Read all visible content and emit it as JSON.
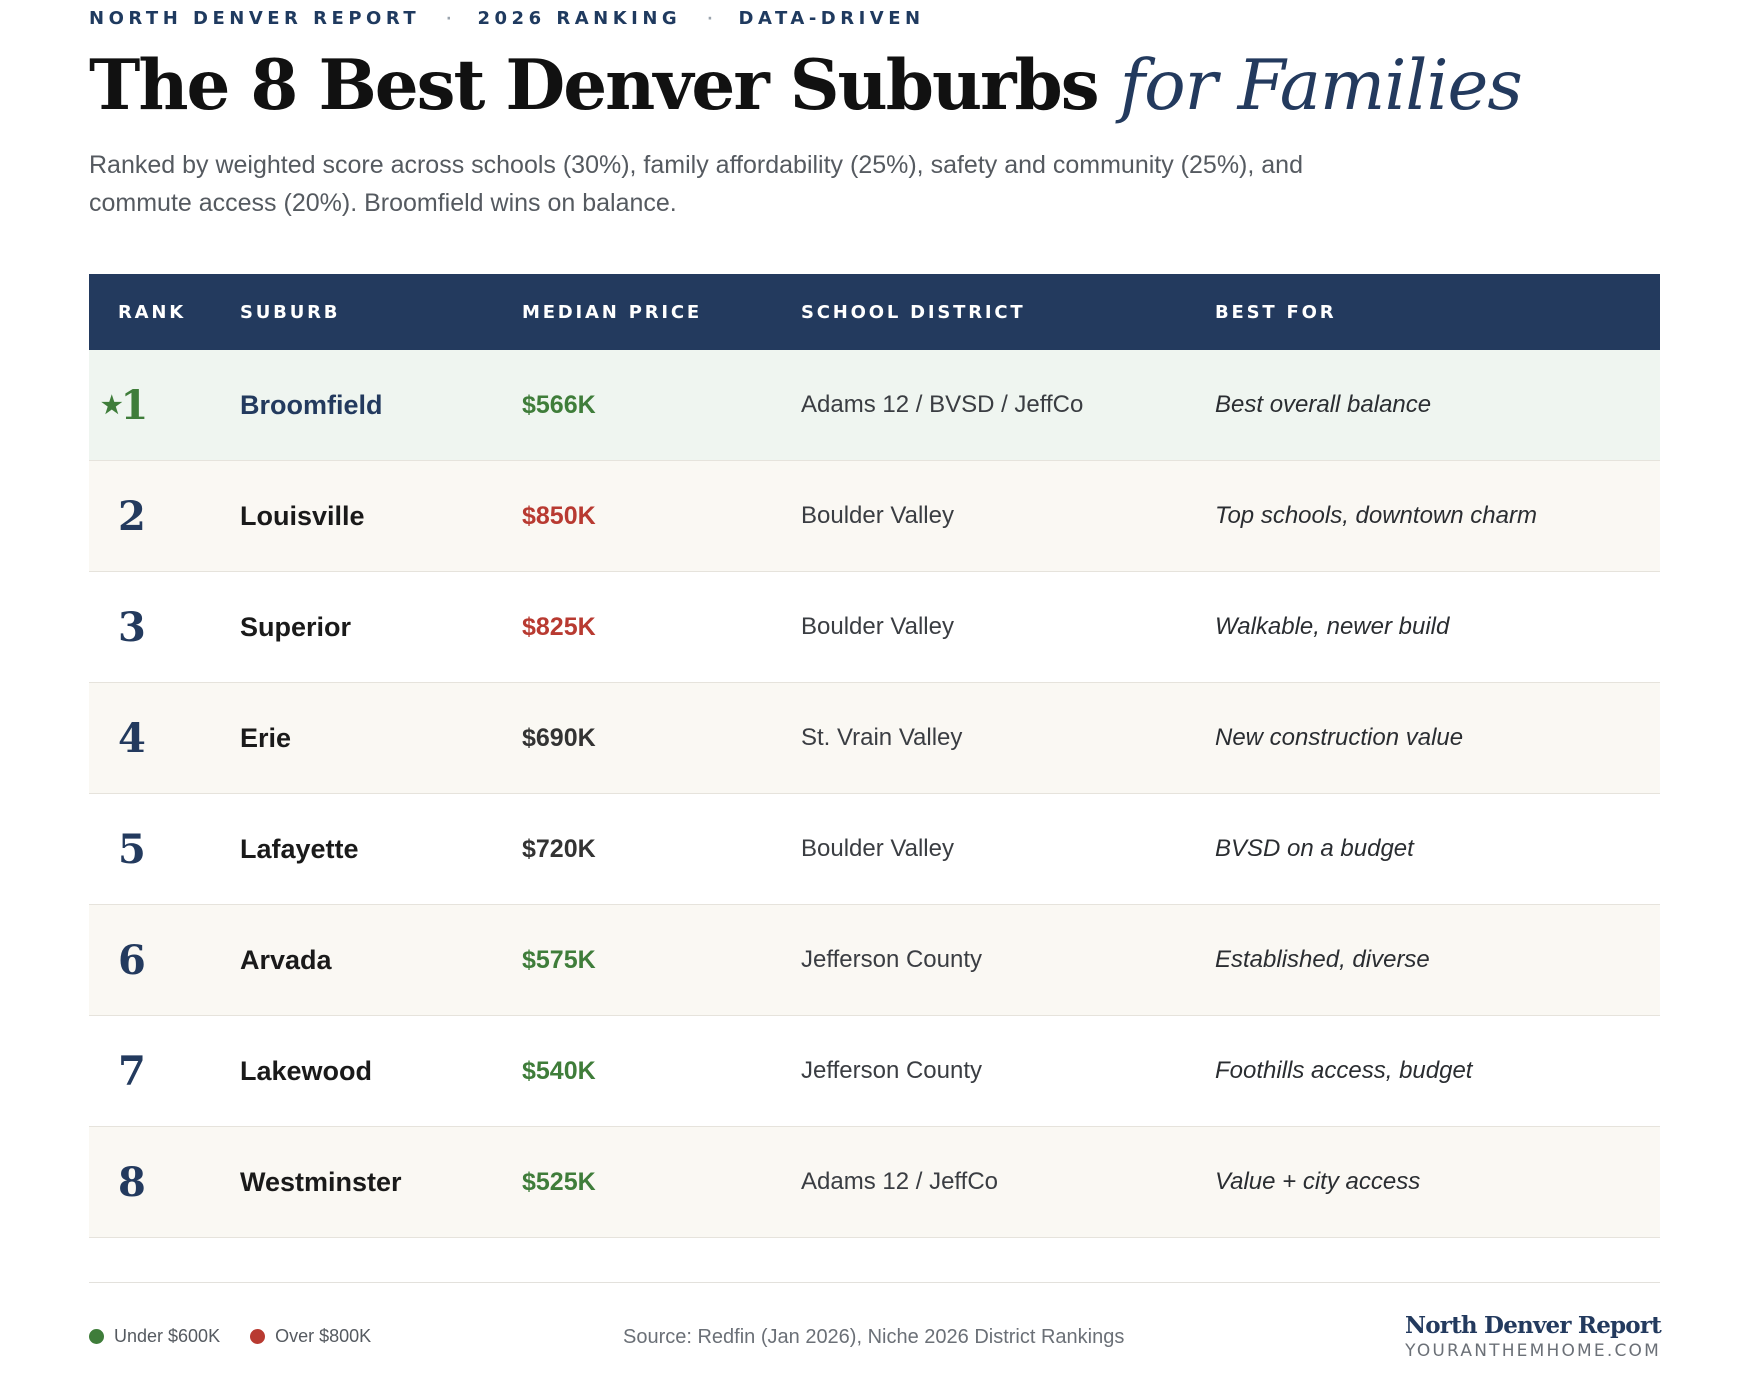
{
  "kicker": {
    "part1": "NORTH DENVER REPORT",
    "sep1": "·",
    "part2": "2026 RANKING",
    "sep2": "·",
    "part3": "DATA-DRIVEN"
  },
  "title": {
    "main": "The 8 Best Denver Suburbs",
    "accent": "for Families"
  },
  "subtitle": "Ranked by weighted score across schools (30%), family affordability (25%), safety and community (25%), and commute access (20%). Broomfield wins on balance.",
  "table": {
    "headers": {
      "rank": "RANK",
      "suburb": "SUBURB",
      "price": "MEDIAN PRICE",
      "district": "SCHOOL DISTRICT",
      "best": "BEST FOR"
    },
    "rows": [
      {
        "star": "★",
        "rank": "1",
        "suburb": "Broomfield",
        "price": "$566K",
        "price_tone": "green",
        "district": "Adams 12 / BVSD / JeffCo",
        "best": "Best overall balance"
      },
      {
        "rank": "2",
        "suburb": "Louisville",
        "price": "$850K",
        "price_tone": "red",
        "district": "Boulder Valley",
        "best": "Top schools, downtown charm"
      },
      {
        "rank": "3",
        "suburb": "Superior",
        "price": "$825K",
        "price_tone": "red",
        "district": "Boulder Valley",
        "best": "Walkable, newer build"
      },
      {
        "rank": "4",
        "suburb": "Erie",
        "price": "$690K",
        "price_tone": "neutral",
        "district": "St. Vrain Valley",
        "best": "New construction value"
      },
      {
        "rank": "5",
        "suburb": "Lafayette",
        "price": "$720K",
        "price_tone": "neutral",
        "district": "Boulder Valley",
        "best": "BVSD on a budget"
      },
      {
        "rank": "6",
        "suburb": "Arvada",
        "price": "$575K",
        "price_tone": "green",
        "district": "Jefferson County",
        "best": "Established, diverse"
      },
      {
        "rank": "7",
        "suburb": "Lakewood",
        "price": "$540K",
        "price_tone": "green",
        "district": "Jefferson County",
        "best": "Foothills access, budget"
      },
      {
        "rank": "8",
        "suburb": "Westminster",
        "price": "$525K",
        "price_tone": "green",
        "district": "Adams 12 / JeffCo",
        "best": "Value + city access"
      }
    ]
  },
  "legend": {
    "under": {
      "label": "Under $600K",
      "color": "#3f7d3a"
    },
    "over": {
      "label": "Over $800K",
      "color": "#b83a31"
    }
  },
  "source": "Source: Redfin (Jan 2026), Niche 2026 District Rankings",
  "brand": {
    "name": "North Denver Report",
    "url": "YOURANTHEMHOME.COM"
  },
  "colors": {
    "navy": "#233a5e",
    "green": "#3f7d3a",
    "red": "#b83a31"
  }
}
